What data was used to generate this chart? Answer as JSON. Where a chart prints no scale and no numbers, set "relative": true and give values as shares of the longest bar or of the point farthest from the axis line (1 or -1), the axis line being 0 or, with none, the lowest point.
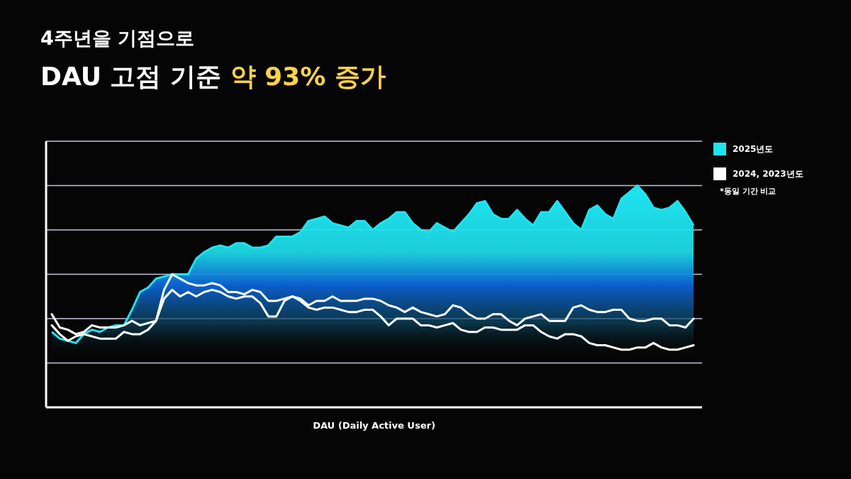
{
  "chart_data": {
    "type": "line",
    "title": "4주년을 기점으로",
    "subtitle": "DAU 고점 기준 약 93% 증가",
    "xlabel": "DAU (Daily Active User)",
    "annotations": [
      "*동일 기간 비교"
    ],
    "relative": true,
    "grid": true,
    "legend": "right",
    "categories": [
      null,
      null,
      null,
      null,
      null,
      null,
      null,
      null,
      null,
      null,
      null,
      null,
      null,
      null,
      null,
      null,
      null,
      null,
      null,
      null,
      null,
      null,
      null,
      null,
      null,
      null,
      null,
      null,
      null,
      null,
      null,
      null,
      null,
      null,
      null,
      null,
      null,
      null,
      null,
      null,
      null,
      null,
      null,
      null,
      null,
      null,
      null,
      null,
      null,
      null,
      null,
      null,
      null,
      null,
      null,
      null,
      null,
      null,
      null,
      null,
      null,
      null,
      null,
      null,
      null,
      null,
      null,
      null,
      null,
      null,
      null,
      null,
      null,
      null,
      null,
      null,
      null,
      null,
      null,
      null,
      null
    ],
    "series": [
      {
        "name": "2025년도",
        "type": "area",
        "color": "#1ee4f0",
        "values": [
          0.34,
          0.31,
          0.3,
          0.29,
          0.33,
          0.35,
          0.34,
          0.36,
          0.37,
          0.37,
          0.44,
          0.52,
          0.54,
          0.58,
          0.59,
          0.6,
          0.6,
          0.6,
          0.67,
          0.7,
          0.72,
          0.73,
          0.72,
          0.74,
          0.74,
          0.72,
          0.72,
          0.73,
          0.77,
          0.77,
          0.77,
          0.79,
          0.84,
          0.85,
          0.86,
          0.83,
          0.82,
          0.81,
          0.84,
          0.84,
          0.8,
          0.83,
          0.85,
          0.88,
          0.88,
          0.83,
          0.8,
          0.79,
          0.83,
          0.81,
          0.79,
          0.83,
          0.87,
          0.92,
          0.93,
          0.87,
          0.85,
          0.85,
          0.89,
          0.85,
          0.82,
          0.88,
          0.88,
          0.93,
          0.88,
          0.83,
          0.8,
          0.89,
          0.91,
          0.87,
          0.85,
          0.94,
          0.97,
          1,
          0.96,
          0.9,
          0.89,
          0.9,
          0.93,
          0.88,
          0.82
        ]
      },
      {
        "name": "2024, 2023년도",
        "color": "#ffffff",
        "values": [
          0.42,
          0.36,
          0.35,
          0.33,
          0.34,
          0.37,
          0.36,
          0.36,
          0.36,
          0.37,
          0.39,
          0.37,
          0.38,
          0.39,
          0.53,
          0.6,
          0.58,
          0.56,
          0.55,
          0.55,
          0.56,
          0.55,
          0.52,
          0.52,
          0.51,
          0.53,
          0.52,
          0.48,
          0.48,
          0.49,
          0.5,
          0.49,
          0.46,
          0.48,
          0.48,
          0.5,
          0.48,
          0.48,
          0.48,
          0.49,
          0.49,
          0.48,
          0.46,
          0.45,
          0.43,
          0.45,
          0.43,
          0.42,
          0.41,
          0.42,
          0.46,
          0.45,
          0.42,
          0.4,
          0.4,
          0.42,
          0.42,
          0.39,
          0.37,
          0.4,
          0.41,
          0.42,
          0.39,
          0.39,
          0.39,
          0.45,
          0.46,
          0.44,
          0.43,
          0.43,
          0.44,
          0.44,
          0.4,
          0.39,
          0.39,
          0.4,
          0.4,
          0.37,
          0.37,
          0.36,
          0.4
        ]
      },
      {
        "color": "#ffffff",
        "values": [
          0.37,
          0.33,
          0.3,
          0.32,
          0.33,
          0.32,
          0.31,
          0.31,
          0.31,
          0.34,
          0.33,
          0.33,
          0.35,
          0.39,
          0.49,
          0.53,
          0.5,
          0.52,
          0.5,
          0.52,
          0.53,
          0.52,
          0.5,
          0.49,
          0.5,
          0.5,
          0.47,
          0.41,
          0.41,
          0.48,
          0.5,
          0.48,
          0.45,
          0.44,
          0.45,
          0.45,
          0.44,
          0.43,
          0.43,
          0.44,
          0.44,
          0.41,
          0.37,
          0.4,
          0.4,
          0.4,
          0.37,
          0.37,
          0.36,
          0.37,
          0.38,
          0.35,
          0.34,
          0.34,
          0.36,
          0.36,
          0.35,
          0.35,
          0.35,
          0.37,
          0.37,
          0.34,
          0.32,
          0.31,
          0.33,
          0.33,
          0.32,
          0.29,
          0.28,
          0.28,
          0.27,
          0.26,
          0.26,
          0.27,
          0.27,
          0.29,
          0.27,
          0.26,
          0.26,
          0.27,
          0.28
        ]
      }
    ]
  }
}
